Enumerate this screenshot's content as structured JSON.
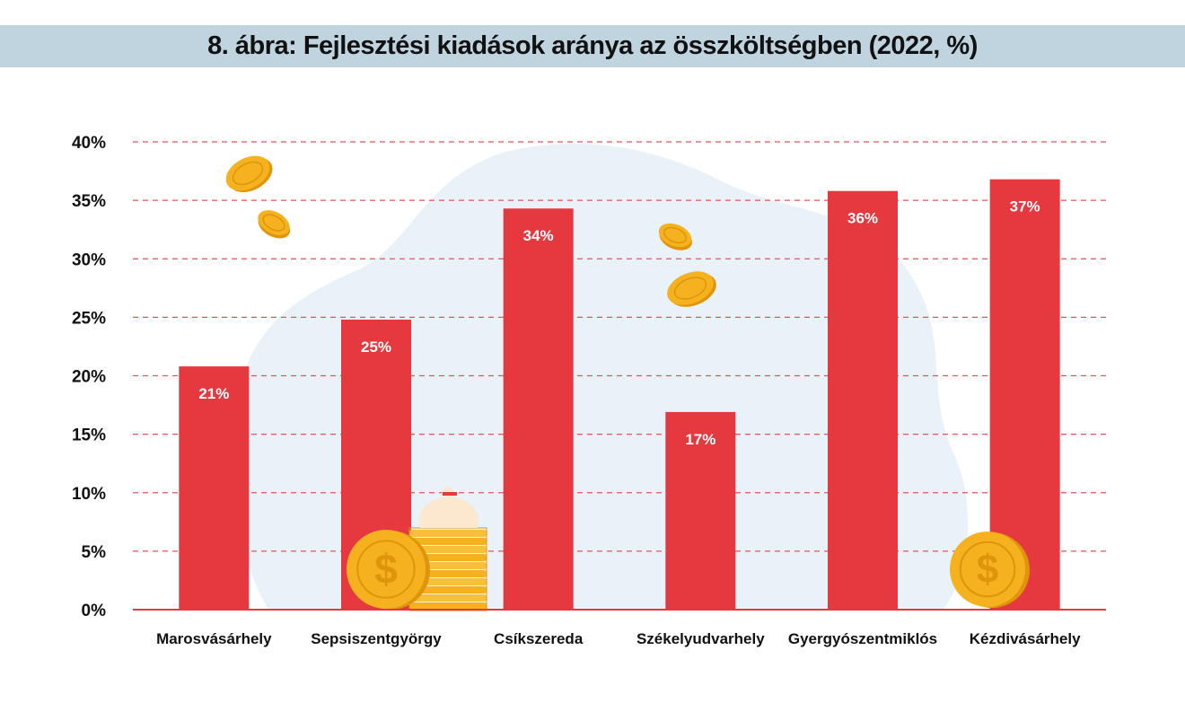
{
  "header": {
    "title": "8. ábra: Fejlesztési kiadások aránya az összköltségben (2022, %)"
  },
  "colors": {
    "bar": "#e5383f",
    "grid": "#e0545a",
    "title_band": "#bfd4df",
    "blob": "#e9f1f9",
    "coin": "#f5b21e",
    "coin_dark": "#e0940c"
  },
  "icons": [
    "coin-icon",
    "dollar-coin-icon",
    "money-bag-icon"
  ],
  "chart_data": {
    "type": "bar",
    "title": "8. ábra: Fejlesztési kiadások aránya az összköltségben (2022, %)",
    "categories": [
      "Marosvásárhely",
      "Sepsiszentgyörgy",
      "Csíkszereda",
      "Székelyudvarhely",
      "Gyergyószentmiklós",
      "Kézdivásárhely"
    ],
    "values": [
      20.8,
      24.8,
      34.3,
      16.9,
      35.8,
      36.8
    ],
    "data_labels": [
      "21%",
      "25%",
      "34%",
      "17%",
      "36%",
      "37%"
    ],
    "y_ticks": [
      0,
      5,
      10,
      15,
      20,
      25,
      30,
      35,
      40
    ],
    "y_tick_labels": [
      "0%",
      "5%",
      "10%",
      "15%",
      "20%",
      "25%",
      "30%",
      "35%",
      "40%"
    ],
    "ylim": [
      0,
      40
    ],
    "xlabel": "",
    "ylabel": "",
    "grid": true,
    "grid_style": "dashed",
    "legend": false
  }
}
